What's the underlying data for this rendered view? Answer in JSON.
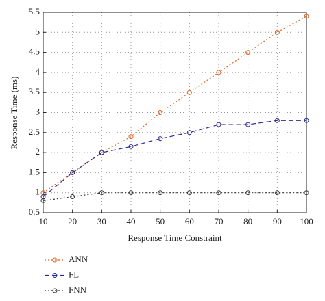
{
  "chart_data": {
    "type": "line",
    "x_label": "Response Time Constraint",
    "y_label": "Response Time (ms)",
    "x": [
      10,
      20,
      30,
      40,
      50,
      60,
      70,
      80,
      90,
      100
    ],
    "series": [
      {
        "name": "ANN",
        "color": "#e0621f",
        "linestyle": "dotted",
        "values": [
          1.0,
          1.5,
          2.0,
          2.4,
          3.0,
          3.5,
          4.0,
          4.5,
          5.0,
          5.4
        ]
      },
      {
        "name": "FL",
        "color": "#2b2b8f",
        "linestyle": "dashed",
        "values": [
          0.9,
          1.5,
          2.0,
          2.15,
          2.35,
          2.5,
          2.7,
          2.7,
          2.8,
          2.8
        ]
      },
      {
        "name": "FNN",
        "color": "#333333",
        "linestyle": "dotted",
        "values": [
          0.8,
          0.9,
          1.0,
          1.0,
          1.0,
          1.0,
          1.0,
          1.0,
          1.0,
          1.0
        ]
      }
    ],
    "xlim": [
      10,
      100
    ],
    "xticks": [
      10,
      20,
      30,
      40,
      50,
      60,
      70,
      80,
      90,
      100
    ],
    "ylim": [
      0.5,
      5.5
    ],
    "yticks": [
      0.5,
      1,
      1.5,
      2,
      2.5,
      3,
      3.5,
      4,
      4.5,
      5,
      5.5
    ],
    "grid": true,
    "legend": "bottom"
  }
}
